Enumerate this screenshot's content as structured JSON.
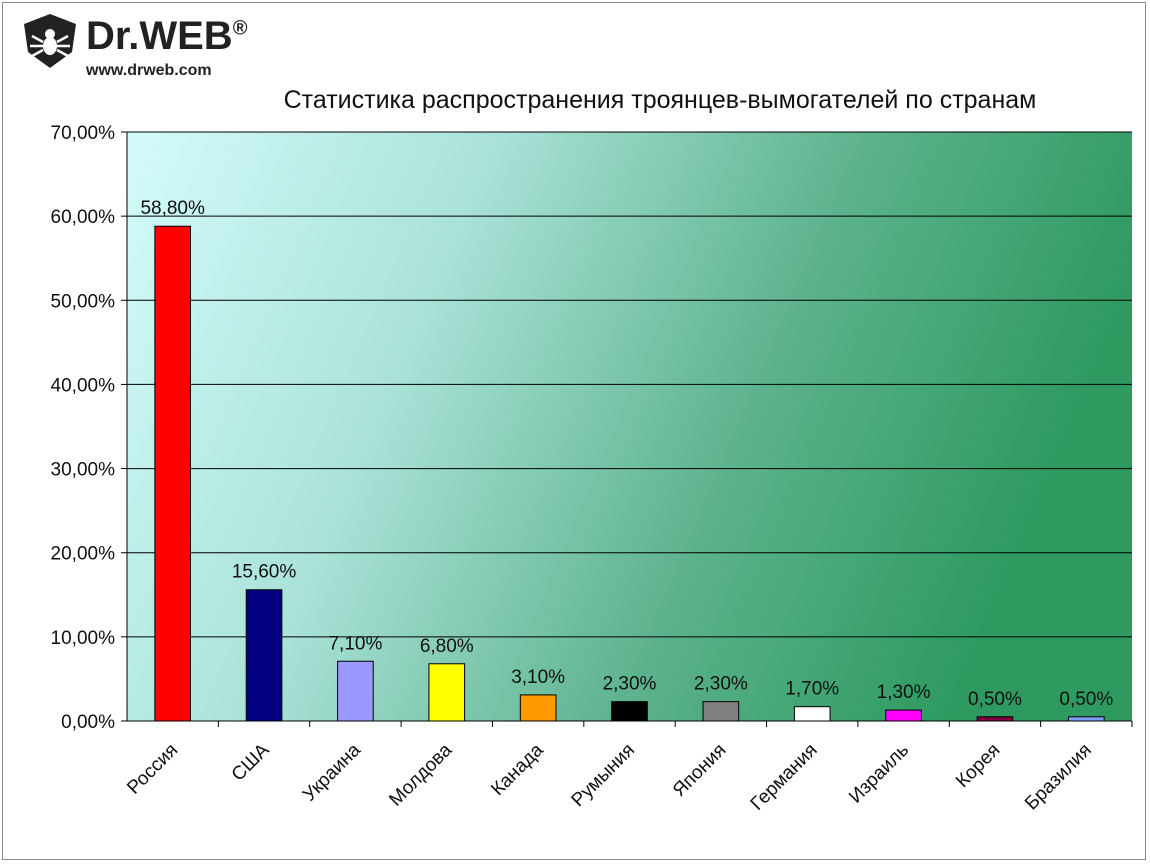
{
  "logo": {
    "icon": "spider-shield-icon",
    "name": "Dr.WEB",
    "registered": "®",
    "url": "www.drweb.com"
  },
  "chart_data": {
    "type": "bar",
    "title": "Статистика распространения троянцев-вымогателей по странам",
    "xlabel": "",
    "ylabel": "",
    "ylim": [
      0,
      70
    ],
    "yticks": [
      0,
      10,
      20,
      30,
      40,
      50,
      60,
      70
    ],
    "ytick_labels": [
      "0,00%",
      "10,00%",
      "20,00%",
      "30,00%",
      "40,00%",
      "50,00%",
      "60,00%",
      "70,00%"
    ],
    "categories": [
      "Россия",
      "США",
      "Украина",
      "Молдова",
      "Канада",
      "Румыния",
      "Япония",
      "Германия",
      "Израиль",
      "Корея",
      "Бразилия"
    ],
    "values": [
      58.8,
      15.6,
      7.1,
      6.8,
      3.1,
      2.3,
      2.3,
      1.7,
      1.3,
      0.5,
      0.5
    ],
    "value_labels": [
      "58,80%",
      "15,60%",
      "7,10%",
      "6,80%",
      "3,10%",
      "2,30%",
      "2,30%",
      "1,70%",
      "1,30%",
      "0,50%",
      "0,50%"
    ],
    "colors": [
      "#ff0000",
      "#000080",
      "#9999ff",
      "#ffff00",
      "#ff9900",
      "#000000",
      "#808080",
      "#ffffff",
      "#ff00ff",
      "#800040",
      "#7f9fff"
    ],
    "grid": true,
    "legend": "none",
    "background_gradient": [
      "#d4fbfb",
      "#2e9a60"
    ]
  }
}
